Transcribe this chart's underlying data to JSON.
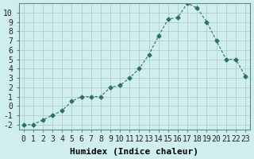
{
  "x": [
    0,
    1,
    2,
    3,
    4,
    5,
    6,
    7,
    8,
    9,
    10,
    11,
    12,
    13,
    14,
    15,
    16,
    17,
    18,
    19,
    20,
    21,
    22,
    23
  ],
  "y": [
    -2,
    -2,
    -1.5,
    -1,
    -0.5,
    0.5,
    1,
    1,
    1,
    2,
    2.2,
    3,
    4,
    5.5,
    7.5,
    9.3,
    9.5,
    11,
    10.5,
    9,
    7,
    5,
    5,
    3.2
  ],
  "line_color": "#2d6e6e",
  "marker_color": "#2d6e6e",
  "bg_color": "#d0eeee",
  "grid_color": "#b0cccc",
  "xlabel": "Humidex (Indice chaleur)",
  "xlim": [
    -0.5,
    23.5
  ],
  "ylim": [
    -2.5,
    11
  ],
  "yticks": [
    -2,
    -1,
    0,
    1,
    2,
    3,
    4,
    5,
    6,
    7,
    8,
    9,
    10
  ],
  "xticks": [
    0,
    1,
    2,
    3,
    4,
    5,
    6,
    7,
    8,
    9,
    10,
    11,
    12,
    13,
    14,
    15,
    16,
    17,
    18,
    19,
    20,
    21,
    22,
    23
  ],
  "xlabel_fontsize": 8,
  "tick_fontsize": 7
}
